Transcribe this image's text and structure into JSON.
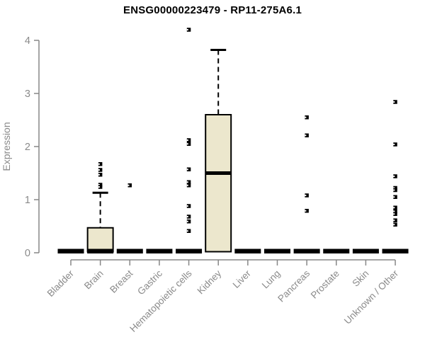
{
  "title": "ENSG00000223479 - RP11-275A6.1",
  "chart_data": {
    "type": "boxplot",
    "title": "ENSG00000223479 - RP11-275A6.1",
    "ylabel": "Expression",
    "xlabel": "",
    "ylim": [
      0,
      4
    ],
    "yticks": [
      "0",
      "1",
      "2",
      "3",
      "4"
    ],
    "grid": false,
    "legend": "none",
    "colors": {
      "box_fill": "#ECE7CD",
      "box_border": "#000000",
      "median": "#000000",
      "outlier": "#000000",
      "axis": "#878787",
      "tick_label": "#8A8A8A",
      "title": "#000000",
      "background": "#FFFFFF"
    },
    "categories": [
      "Bladder",
      "Brain",
      "Breast",
      "Gastric",
      "Hematopoietic cells",
      "Kidney",
      "Liver",
      "Lung",
      "Pancreas",
      "Prostate",
      "Skin",
      "Unknown / Other"
    ],
    "series": [
      {
        "category": "Bladder",
        "q1": 0,
        "median": 0,
        "q3": 0,
        "whisker_low": 0,
        "whisker_high": 0,
        "outliers": []
      },
      {
        "category": "Brain",
        "q1": 0,
        "median": 0,
        "q3": 0.47,
        "whisker_low": 0,
        "whisker_high": 1.13,
        "outliers": [
          1.67,
          1.56,
          1.47,
          1.28,
          1.24
        ]
      },
      {
        "category": "Breast",
        "q1": 0,
        "median": 0,
        "q3": 0,
        "whisker_low": 0,
        "whisker_high": 0,
        "outliers": [
          1.27
        ]
      },
      {
        "category": "Gastric",
        "q1": 0,
        "median": 0,
        "q3": 0,
        "whisker_low": 0,
        "whisker_high": 0,
        "outliers": []
      },
      {
        "category": "Hematopoietic cells",
        "q1": 0,
        "median": 0,
        "q3": 0,
        "whisker_low": 0,
        "whisker_high": 0,
        "outliers": [
          4.2,
          2.12,
          2.05,
          1.57,
          1.33,
          1.27,
          0.88,
          0.68,
          0.59,
          0.41
        ]
      },
      {
        "category": "Kidney",
        "q1": 0,
        "median": 1.5,
        "q3": 2.6,
        "whisker_low": 0,
        "whisker_high": 3.82,
        "outliers": []
      },
      {
        "category": "Liver",
        "q1": 0,
        "median": 0,
        "q3": 0,
        "whisker_low": 0,
        "whisker_high": 0,
        "outliers": []
      },
      {
        "category": "Lung",
        "q1": 0,
        "median": 0,
        "q3": 0,
        "whisker_low": 0,
        "whisker_high": 0,
        "outliers": []
      },
      {
        "category": "Pancreas",
        "q1": 0,
        "median": 0,
        "q3": 0,
        "whisker_low": 0,
        "whisker_high": 0,
        "outliers": [
          2.55,
          2.21,
          1.08,
          0.79
        ]
      },
      {
        "category": "Prostate",
        "q1": 0,
        "median": 0,
        "q3": 0,
        "whisker_low": 0,
        "whisker_high": 0,
        "outliers": []
      },
      {
        "category": "Skin",
        "q1": 0,
        "median": 0,
        "q3": 0,
        "whisker_low": 0,
        "whisker_high": 0,
        "outliers": []
      },
      {
        "category": "Unknown / Other",
        "q1": 0,
        "median": 0,
        "q3": 0,
        "whisker_low": 0,
        "whisker_high": 0,
        "outliers": [
          2.84,
          2.04,
          1.44,
          1.22,
          1.18,
          1.05,
          0.85,
          0.78,
          0.73,
          0.61,
          0.53
        ]
      }
    ]
  }
}
